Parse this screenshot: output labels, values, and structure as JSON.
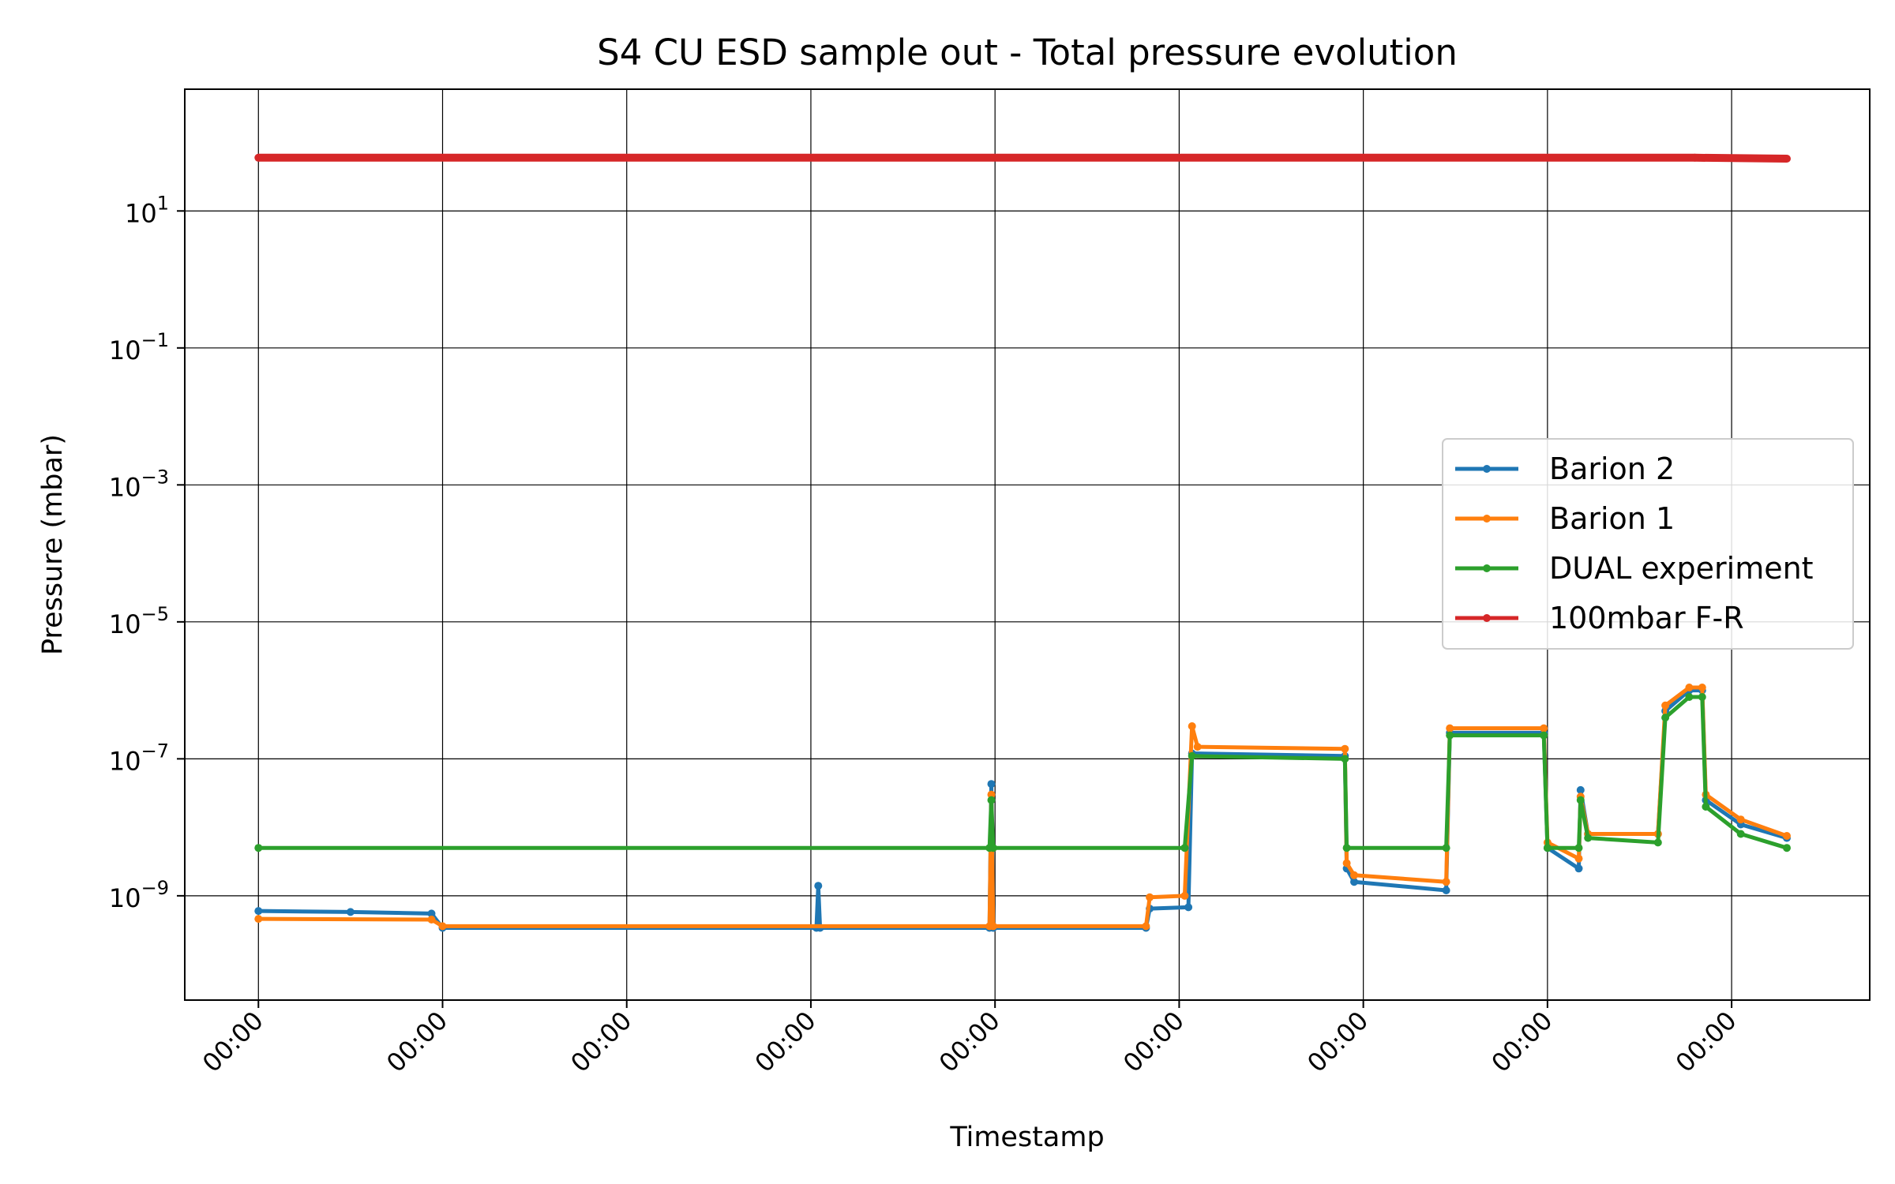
{
  "chart_data": {
    "type": "line",
    "title": "S4 CU ESD sample out - Total pressure evolution",
    "xlabel": "Timestamp",
    "ylabel": "Pressure (mbar)",
    "y_scale": "log",
    "ylim": [
      3e-11,
      600.0
    ],
    "xlim": [
      -0.4,
      8.75
    ],
    "grid": true,
    "legend_position": "center-right",
    "x_ticks": [
      {
        "x": 0,
        "label": "00:00"
      },
      {
        "x": 1,
        "label": "00:00"
      },
      {
        "x": 2,
        "label": "00:00"
      },
      {
        "x": 3,
        "label": "00:00"
      },
      {
        "x": 4,
        "label": "00:00"
      },
      {
        "x": 5,
        "label": "00:00"
      },
      {
        "x": 6,
        "label": "00:00"
      },
      {
        "x": 7,
        "label": "00:00"
      },
      {
        "x": 8,
        "label": "00:00"
      }
    ],
    "y_ticks": [
      {
        "value": 10.0,
        "base": "10",
        "exp": "1"
      },
      {
        "value": 0.1,
        "base": "10",
        "exp": "−1"
      },
      {
        "value": 0.001,
        "base": "10",
        "exp": "−3"
      },
      {
        "value": 1e-05,
        "base": "10",
        "exp": "−5"
      },
      {
        "value": 1e-07,
        "base": "10",
        "exp": "−7"
      },
      {
        "value": 1e-09,
        "base": "10",
        "exp": "−9"
      }
    ],
    "series": [
      {
        "name": "Barion 2",
        "color": "#1f77b4",
        "points": [
          [
            0,
            6e-10
          ],
          [
            0.5,
            5.8e-10
          ],
          [
            0.94,
            5.5e-10
          ],
          [
            1.0,
            3.4e-10
          ],
          [
            3.03,
            3.4e-10
          ],
          [
            3.04,
            1.4e-09
          ],
          [
            3.05,
            3.4e-10
          ],
          [
            3.97,
            3.4e-10
          ],
          [
            3.98,
            4.3e-08
          ],
          [
            3.99,
            3.4e-10
          ],
          [
            4.82,
            3.4e-10
          ],
          [
            4.84,
            6.5e-10
          ],
          [
            5.05,
            6.8e-10
          ],
          [
            5.07,
            1.2e-07
          ],
          [
            5.9,
            1.1e-07
          ],
          [
            5.91,
            2.5e-09
          ],
          [
            5.95,
            1.6e-09
          ],
          [
            6.45,
            1.2e-09
          ],
          [
            6.47,
            2.4e-07
          ],
          [
            6.98,
            2.4e-07
          ],
          [
            7.0,
            5e-09
          ],
          [
            7.17,
            2.5e-09
          ],
          [
            7.18,
            3.5e-08
          ],
          [
            7.22,
            8e-09
          ],
          [
            7.6,
            8e-09
          ],
          [
            7.64,
            5e-07
          ],
          [
            7.77,
            1e-06
          ],
          [
            7.84,
            1e-06
          ],
          [
            7.86,
            2.5e-08
          ],
          [
            8.05,
            1.1e-08
          ],
          [
            8.3,
            7e-09
          ]
        ]
      },
      {
        "name": "Barion 1",
        "color": "#ff7f0e",
        "points": [
          [
            0,
            4.6e-10
          ],
          [
            0.94,
            4.5e-10
          ],
          [
            1.0,
            3.6e-10
          ],
          [
            3.97,
            3.6e-10
          ],
          [
            3.98,
            3e-08
          ],
          [
            3.99,
            3.6e-10
          ],
          [
            4.82,
            3.6e-10
          ],
          [
            4.84,
            9.5e-10
          ],
          [
            5.03,
            1e-09
          ],
          [
            5.07,
            3e-07
          ],
          [
            5.1,
            1.5e-07
          ],
          [
            5.9,
            1.4e-07
          ],
          [
            5.91,
            3e-09
          ],
          [
            5.95,
            2e-09
          ],
          [
            6.45,
            1.6e-09
          ],
          [
            6.47,
            2.8e-07
          ],
          [
            6.98,
            2.8e-07
          ],
          [
            7.0,
            6e-09
          ],
          [
            7.17,
            3.5e-09
          ],
          [
            7.18,
            2.8e-08
          ],
          [
            7.22,
            8e-09
          ],
          [
            7.6,
            8e-09
          ],
          [
            7.64,
            6e-07
          ],
          [
            7.77,
            1.1e-06
          ],
          [
            7.84,
            1.1e-06
          ],
          [
            7.86,
            3e-08
          ],
          [
            8.05,
            1.3e-08
          ],
          [
            8.3,
            7.5e-09
          ]
        ]
      },
      {
        "name": "DUAL experiment",
        "color": "#2ca02c",
        "points": [
          [
            0,
            5e-09
          ],
          [
            3.97,
            5e-09
          ],
          [
            3.98,
            2.5e-08
          ],
          [
            3.99,
            5e-09
          ],
          [
            5.03,
            5e-09
          ],
          [
            5.07,
            1.1e-07
          ],
          [
            5.9,
            1e-07
          ],
          [
            5.91,
            5e-09
          ],
          [
            6.45,
            5e-09
          ],
          [
            6.47,
            2.2e-07
          ],
          [
            6.98,
            2.2e-07
          ],
          [
            7.0,
            5e-09
          ],
          [
            7.17,
            5e-09
          ],
          [
            7.18,
            2.5e-08
          ],
          [
            7.22,
            7e-09
          ],
          [
            7.6,
            6e-09
          ],
          [
            7.64,
            4e-07
          ],
          [
            7.77,
            8e-07
          ],
          [
            7.84,
            8e-07
          ],
          [
            7.86,
            2e-08
          ],
          [
            8.05,
            8e-09
          ],
          [
            8.3,
            5e-09
          ]
        ]
      },
      {
        "name": "100mbar F-R",
        "color": "#d62728",
        "points": [
          [
            0,
            60
          ],
          [
            7.8,
            60
          ],
          [
            8.3,
            58
          ]
        ]
      }
    ]
  }
}
